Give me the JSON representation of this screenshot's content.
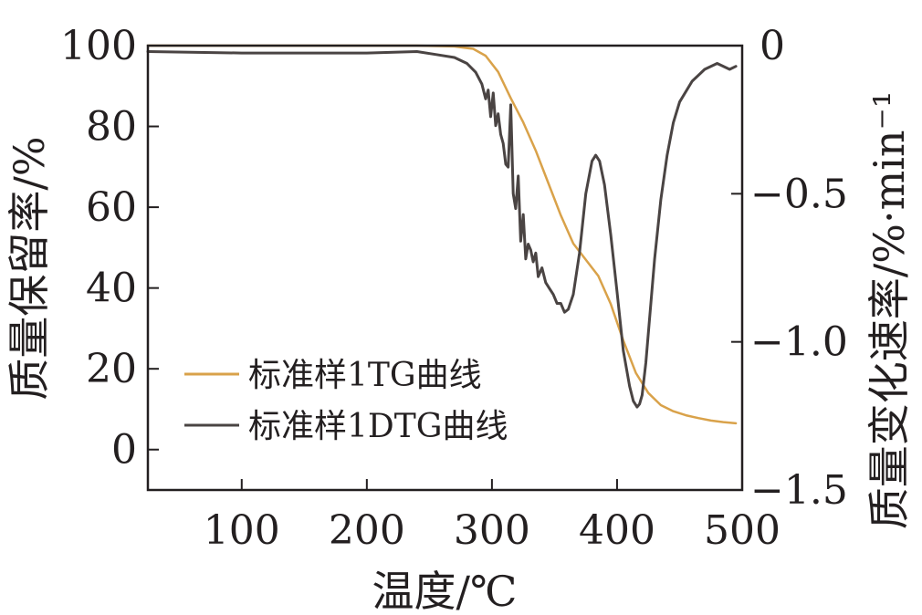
{
  "chart_data": {
    "type": "line",
    "xlabel": "温度/℃",
    "ylabel_left": "质量保留率/%",
    "ylabel_right": "质量变化速率/%·min⁻¹",
    "xlim": [
      25,
      500
    ],
    "ylim_left": [
      -10,
      100
    ],
    "ylim_right": [
      -1.5,
      0
    ],
    "x_ticks": [
      100,
      200,
      300,
      400,
      500
    ],
    "x_tick_labels": [
      "100",
      "200",
      "300",
      "400",
      "500"
    ],
    "y_left_ticks": [
      0,
      20,
      40,
      60,
      80,
      100
    ],
    "y_left_tick_labels": [
      "0",
      "20",
      "40",
      "60",
      "80",
      "100"
    ],
    "y_right_ticks": [
      0,
      -0.5,
      -1.0,
      -1.5
    ],
    "y_right_tick_labels": [
      "0",
      "−0.5",
      "−1.0",
      "−1.5"
    ],
    "grid": false,
    "legend_position": "bottom-left",
    "series": [
      {
        "name": "标准样1TG曲线",
        "axis": "left",
        "color": "#d9a24a",
        "x": [
          25,
          100,
          200,
          240,
          270,
          285,
          295,
          305,
          315,
          325,
          335,
          345,
          355,
          365,
          375,
          385,
          395,
          405,
          415,
          425,
          435,
          445,
          455,
          465,
          475,
          485,
          495
        ],
        "y": [
          100,
          100,
          100,
          100,
          99.8,
          99.2,
          97.5,
          93.5,
          87,
          81,
          74,
          66,
          58,
          51,
          47,
          43,
          36,
          27,
          19,
          14,
          11,
          9.5,
          8.5,
          7.8,
          7.2,
          6.8,
          6.5
        ]
      },
      {
        "name": "标准样1DTG曲线",
        "axis": "right",
        "color": "#4a4443",
        "x": [
          25,
          100,
          200,
          240,
          255,
          270,
          280,
          287,
          292,
          295,
          297,
          299,
          301,
          303,
          305,
          307,
          309,
          311,
          313,
          315,
          317,
          319,
          321,
          323,
          325,
          327,
          329,
          331,
          333,
          335,
          337,
          340,
          343,
          346,
          349,
          352,
          355,
          358,
          361,
          365,
          370,
          375,
          380,
          383,
          386,
          390,
          395,
          400,
          405,
          410,
          413,
          416,
          418,
          420,
          423,
          426,
          430,
          435,
          440,
          445,
          450,
          460,
          470,
          480,
          490,
          495
        ],
        "y": [
          -0.02,
          -0.025,
          -0.025,
          -0.02,
          -0.03,
          -0.04,
          -0.06,
          -0.09,
          -0.13,
          -0.18,
          -0.15,
          -0.24,
          -0.16,
          -0.27,
          -0.23,
          -0.3,
          -0.33,
          -0.4,
          -0.41,
          -0.2,
          -0.5,
          -0.55,
          -0.44,
          -0.66,
          -0.57,
          -0.72,
          -0.67,
          -0.69,
          -0.73,
          -0.7,
          -0.78,
          -0.75,
          -0.8,
          -0.82,
          -0.84,
          -0.87,
          -0.87,
          -0.9,
          -0.89,
          -0.84,
          -0.7,
          -0.5,
          -0.39,
          -0.37,
          -0.39,
          -0.47,
          -0.64,
          -0.83,
          -1.03,
          -1.15,
          -1.2,
          -1.22,
          -1.21,
          -1.18,
          -1.07,
          -0.92,
          -0.72,
          -0.52,
          -0.37,
          -0.26,
          -0.19,
          -0.12,
          -0.08,
          -0.06,
          -0.08,
          -0.07
        ]
      }
    ]
  }
}
